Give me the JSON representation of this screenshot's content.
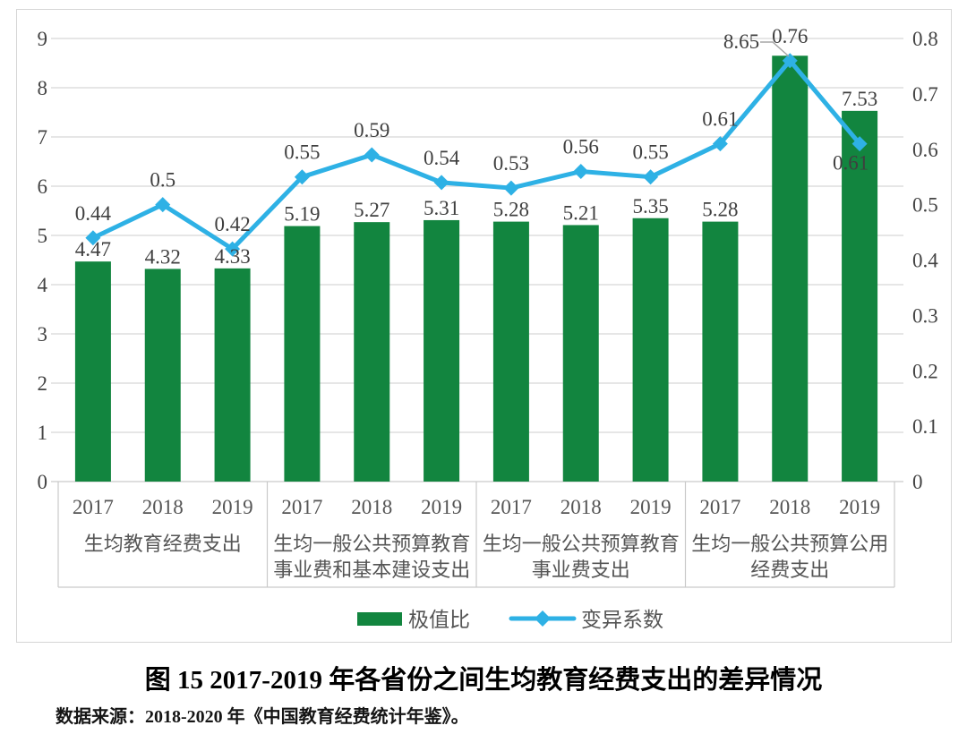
{
  "caption": {
    "title": "图 15  2017-2019 年各省份之间生均教育经费支出的差异情况",
    "source": "数据来源：2018-2020 年《中国教育经费统计年鉴》。"
  },
  "colors": {
    "bar": "#12853F",
    "line": "#2EB1E5",
    "grid": "#d8d8d8",
    "axis_line": "#c9c9c9",
    "category_border": "#c9c9c9",
    "leader": "#a6a6a6",
    "data_label": "#3f3f3f"
  },
  "chart_data": {
    "type": "bar+line",
    "title": "图 15  2017-2019 年各省份之间生均教育经费支出的差异情况",
    "groups": [
      {
        "label_lines": [
          "生均教育经费支出"
        ],
        "years": [
          "2017",
          "2018",
          "2019"
        ]
      },
      {
        "label_lines": [
          "生均一般公共预算教育",
          "事业费和基本建设支出"
        ],
        "years": [
          "2017",
          "2018",
          "2019"
        ]
      },
      {
        "label_lines": [
          "生均一般公共预算教育",
          "事业费支出"
        ],
        "years": [
          "2017",
          "2018",
          "2019"
        ]
      },
      {
        "label_lines": [
          "生均一般公共预算公用",
          "经费支出"
        ],
        "years": [
          "2017",
          "2018",
          "2019"
        ]
      }
    ],
    "categories": [
      "2017",
      "2018",
      "2019",
      "2017",
      "2018",
      "2019",
      "2017",
      "2018",
      "2019",
      "2017",
      "2018",
      "2019"
    ],
    "series": [
      {
        "name": "极值比",
        "type": "bar",
        "axis": "left",
        "values": [
          4.47,
          4.32,
          4.33,
          5.19,
          5.27,
          5.31,
          5.28,
          5.21,
          5.35,
          5.28,
          8.65,
          7.53
        ],
        "labels": [
          "4.47",
          "4.32",
          "4.33",
          "5.19",
          "5.27",
          "5.31",
          "5.28",
          "5.21",
          "5.35",
          "5.28",
          "8.65",
          "7.53"
        ],
        "label_positions": [
          "above",
          "above",
          "above",
          "above",
          "above",
          "above",
          "above",
          "above",
          "above",
          "above",
          "leader-left",
          "above"
        ]
      },
      {
        "name": "变异系数",
        "type": "line",
        "axis": "right",
        "values": [
          0.44,
          0.5,
          0.42,
          0.55,
          0.59,
          0.54,
          0.53,
          0.56,
          0.55,
          0.61,
          0.76,
          0.61
        ],
        "labels": [
          "0.44",
          "0.5",
          "0.42",
          "0.55",
          "0.59",
          "0.54",
          "0.53",
          "0.56",
          "0.55",
          "0.61",
          "0.76",
          "0.61"
        ],
        "label_positions": [
          "above",
          "above",
          "above",
          "above",
          "above",
          "above",
          "above",
          "above",
          "above",
          "above",
          "above",
          "below"
        ]
      }
    ],
    "left_axis": {
      "min": 0,
      "max": 9,
      "step": 1,
      "ticks": [
        "0",
        "1",
        "2",
        "3",
        "4",
        "5",
        "6",
        "7",
        "8",
        "9"
      ]
    },
    "right_axis": {
      "min": 0,
      "max": 0.8,
      "step": 0.1,
      "ticks": [
        "0",
        "0.1",
        "0.2",
        "0.3",
        "0.4",
        "0.5",
        "0.6",
        "0.7",
        "0.8"
      ]
    },
    "legend": [
      {
        "label": "极值比",
        "marker": "bar-swatch"
      },
      {
        "label": "变异系数",
        "marker": "line-diamond"
      }
    ],
    "grid": true,
    "legend_position": "bottom-center"
  }
}
